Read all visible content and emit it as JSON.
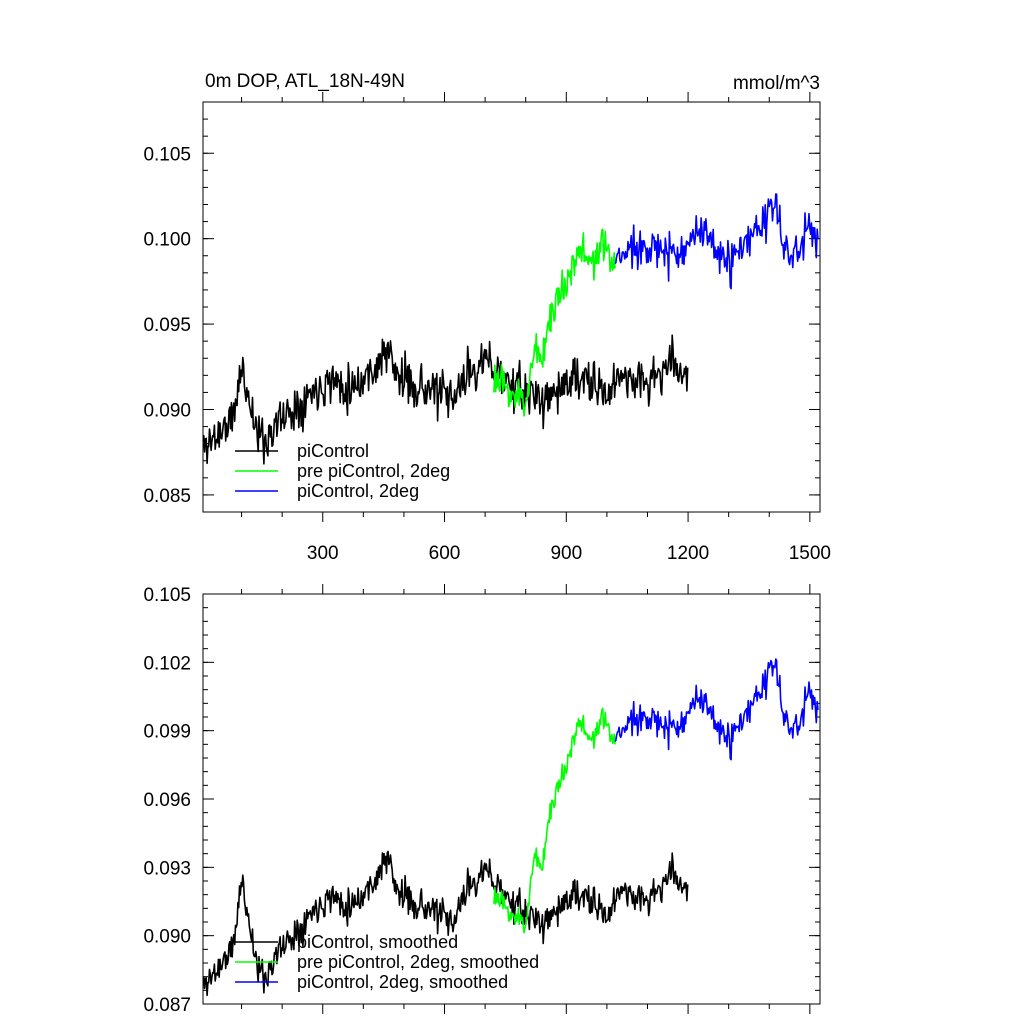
{
  "chart_data": [
    {
      "type": "line",
      "title": "0m DOP, ATL_18N-49N",
      "units": "mmol/m^3",
      "xlabel": "",
      "ylabel": "",
      "xlim": [
        5,
        1525
      ],
      "ylim": [
        0.084,
        0.108
      ],
      "xticks": [
        300,
        600,
        900,
        1200,
        1500
      ],
      "xtick_labels": [
        "300",
        "600",
        "900",
        "1200",
        "1500"
      ],
      "yticks": [
        0.085,
        0.09,
        0.095,
        0.1,
        0.105
      ],
      "ytick_labels": [
        "0.085",
        "0.090",
        "0.095",
        "0.100",
        "0.105"
      ],
      "grid": false,
      "legend_position": "bottom-left",
      "series": [
        {
          "name": "piControl",
          "color": "#000000",
          "x_start": 5,
          "x_end": 1200,
          "anchors_x": [
            5,
            40,
            80,
            100,
            120,
            140,
            160,
            180,
            200,
            240,
            280,
            320,
            360,
            400,
            430,
            460,
            480,
            520,
            560,
            600,
            620,
            640,
            660,
            700,
            720,
            760,
            800,
            840,
            880,
            920,
            960,
            1000,
            1040,
            1080,
            1120,
            1160,
            1200
          ],
          "anchors_y": [
            0.0878,
            0.0885,
            0.0895,
            0.0925,
            0.0905,
            0.0885,
            0.0882,
            0.089,
            0.0895,
            0.0903,
            0.0912,
            0.0918,
            0.0913,
            0.0918,
            0.0925,
            0.0935,
            0.092,
            0.0915,
            0.0912,
            0.0908,
            0.0903,
            0.0915,
            0.0922,
            0.0928,
            0.0925,
            0.0915,
            0.091,
            0.0905,
            0.0912,
            0.0918,
            0.0915,
            0.0908,
            0.0922,
            0.0915,
            0.0918,
            0.0928,
            0.092
          ],
          "noise": 0.0013,
          "seed": 11
        },
        {
          "name": "pre piControl, 2deg",
          "color": "#00ff00",
          "x_start": 720,
          "x_end": 1020,
          "anchors_x": [
            720,
            760,
            800,
            820,
            840,
            860,
            880,
            900,
            930,
            960,
            990,
            1020
          ],
          "anchors_y": [
            0.0918,
            0.091,
            0.0905,
            0.0935,
            0.093,
            0.0955,
            0.0965,
            0.0975,
            0.0995,
            0.0985,
            0.0995,
            0.0985
          ],
          "noise": 0.0011,
          "seed": 23
        },
        {
          "name": "piControl, 2deg",
          "color": "#0000ff",
          "x_start": 1020,
          "x_end": 1520,
          "anchors_x": [
            1020,
            1060,
            1100,
            1140,
            1180,
            1220,
            1260,
            1300,
            1340,
            1380,
            1410,
            1440,
            1470,
            1500,
            1520
          ],
          "anchors_y": [
            0.0985,
            0.0995,
            0.0998,
            0.099,
            0.0993,
            0.1005,
            0.0995,
            0.0985,
            0.0995,
            0.1008,
            0.102,
            0.0995,
            0.099,
            0.1008,
            0.0998
          ],
          "noise": 0.0012,
          "seed": 37
        }
      ]
    },
    {
      "type": "line",
      "title": "",
      "xlabel": "",
      "ylabel": "",
      "xlim": [
        5,
        1525
      ],
      "ylim": [
        0.087,
        0.105
      ],
      "xticks": [
        300,
        600,
        900,
        1200,
        1500
      ],
      "xtick_labels": [],
      "yticks": [
        0.087,
        0.09,
        0.093,
        0.096,
        0.099,
        0.102,
        0.105
      ],
      "ytick_labels": [
        "0.087",
        "0.090",
        "0.093",
        "0.096",
        "0.099",
        "0.102",
        "0.105"
      ],
      "grid": false,
      "legend_position": "bottom-left",
      "series": [
        {
          "name": "piControl, smoothed",
          "color": "#000000",
          "x_start": 5,
          "x_end": 1200,
          "anchors_x": [
            5,
            40,
            80,
            100,
            120,
            140,
            160,
            180,
            200,
            240,
            280,
            320,
            360,
            400,
            430,
            460,
            480,
            520,
            560,
            600,
            620,
            640,
            660,
            700,
            720,
            760,
            800,
            840,
            880,
            920,
            960,
            1000,
            1040,
            1080,
            1120,
            1160,
            1200
          ],
          "anchors_y": [
            0.0878,
            0.0885,
            0.0895,
            0.0925,
            0.0905,
            0.0885,
            0.0882,
            0.089,
            0.0895,
            0.0903,
            0.0912,
            0.0918,
            0.0913,
            0.0918,
            0.0925,
            0.0935,
            0.092,
            0.0915,
            0.0912,
            0.0908,
            0.0903,
            0.0915,
            0.0922,
            0.0928,
            0.0925,
            0.0915,
            0.091,
            0.0905,
            0.0912,
            0.0918,
            0.0915,
            0.0908,
            0.0922,
            0.0915,
            0.0918,
            0.0928,
            0.092
          ],
          "noise": 0.0007,
          "seed": 11
        },
        {
          "name": "pre piControl, 2deg, smoothed",
          "color": "#00ff00",
          "x_start": 720,
          "x_end": 1020,
          "anchors_x": [
            720,
            760,
            800,
            820,
            840,
            860,
            880,
            900,
            930,
            960,
            990,
            1020
          ],
          "anchors_y": [
            0.0918,
            0.091,
            0.0905,
            0.0935,
            0.093,
            0.0955,
            0.0965,
            0.0975,
            0.0995,
            0.0985,
            0.0995,
            0.0985
          ],
          "noise": 0.0005,
          "seed": 23
        },
        {
          "name": "piControl, 2deg, smoothed",
          "color": "#0000ff",
          "x_start": 1020,
          "x_end": 1520,
          "anchors_x": [
            1020,
            1060,
            1100,
            1140,
            1180,
            1220,
            1260,
            1300,
            1340,
            1380,
            1410,
            1440,
            1470,
            1500,
            1520
          ],
          "anchors_y": [
            0.0985,
            0.0995,
            0.0998,
            0.099,
            0.0993,
            0.1005,
            0.0995,
            0.0985,
            0.0995,
            0.1008,
            0.102,
            0.0995,
            0.099,
            0.1008,
            0.0998
          ],
          "noise": 0.0007,
          "seed": 37
        }
      ]
    }
  ]
}
